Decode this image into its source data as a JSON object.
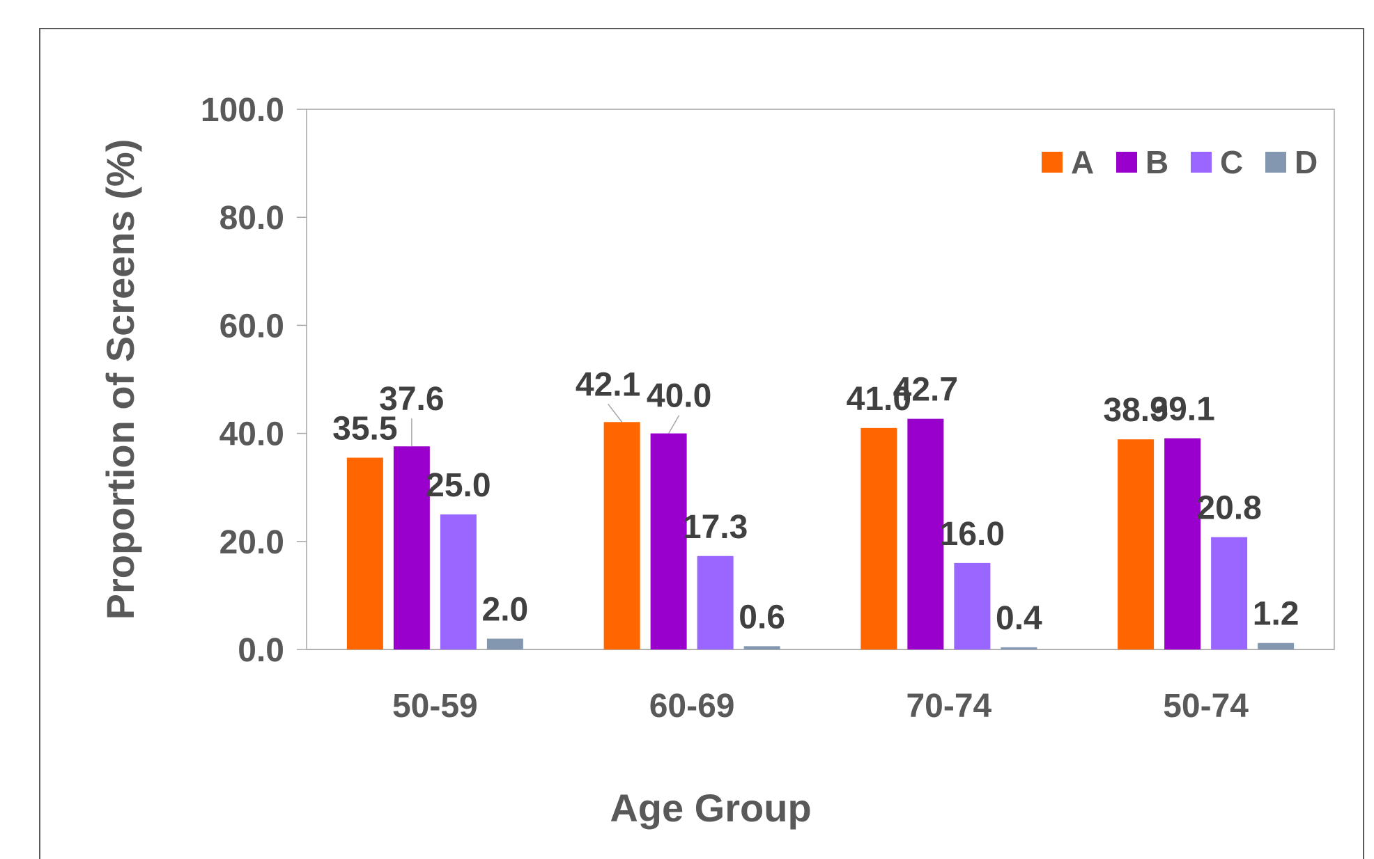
{
  "chart_data": {
    "type": "bar",
    "title": "",
    "xlabel": "Age Group",
    "ylabel": "Proportion of Screens (%)",
    "ylim": [
      0,
      100
    ],
    "yticks": [
      "0.0",
      "20.0",
      "40.0",
      "60.0",
      "80.0",
      "100.0"
    ],
    "ytick_values": [
      0,
      20,
      40,
      60,
      80,
      100
    ],
    "categories": [
      "50-59",
      "60-69",
      "70-74",
      "50-74"
    ],
    "legend_position": "top-right",
    "grid": false,
    "series": [
      {
        "name": "A",
        "color": "#FF6600",
        "values": [
          35.5,
          42.1,
          41.0,
          38.9
        ],
        "labels": [
          "35.5",
          "42.1",
          "41.0",
          "38.9"
        ]
      },
      {
        "name": "B",
        "color": "#9900CC",
        "values": [
          37.6,
          40.0,
          42.7,
          39.1
        ],
        "labels": [
          "37.6",
          "40.0",
          "42.7",
          "39.1"
        ]
      },
      {
        "name": "C",
        "color": "#9966FF",
        "values": [
          25.0,
          17.3,
          16.0,
          20.8
        ],
        "labels": [
          "25.0",
          "17.3",
          "16.0",
          "20.8"
        ]
      },
      {
        "name": "D",
        "color": "#8497B0",
        "values": [
          2.0,
          0.6,
          0.4,
          1.2
        ],
        "labels": [
          "2.0",
          "0.6",
          "0.4",
          "1.2"
        ]
      }
    ]
  }
}
